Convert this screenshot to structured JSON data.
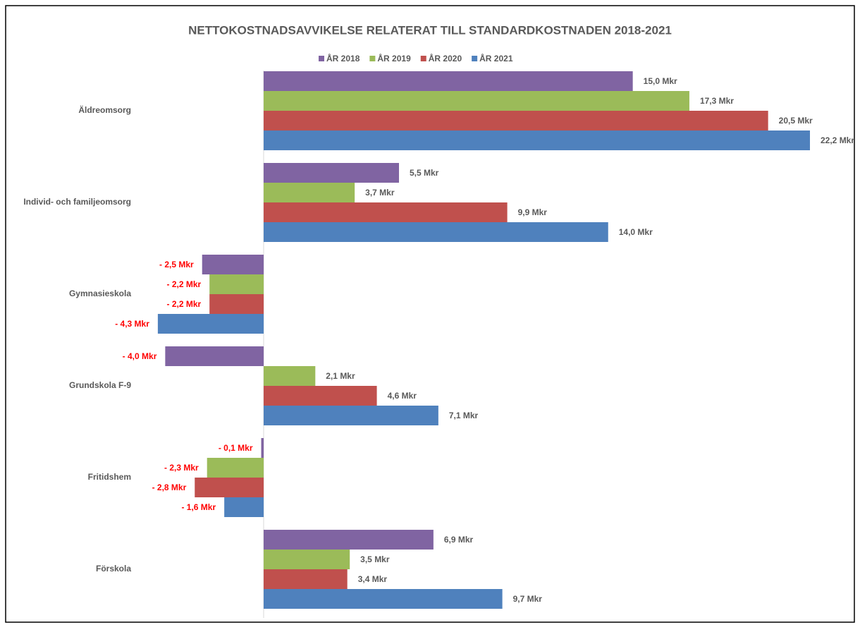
{
  "chart_data": {
    "type": "hbar",
    "title": "NETTOKOSTNADSAVVIKELSE RELATERAT TILL STANDARDKOSTNADEN 2018-2021",
    "categories": [
      "Äldreomsorg",
      "Individ- och familjeomsorg",
      "Gymnasieskola",
      "Grundskola F-9",
      "Fritidshem",
      "Förskola"
    ],
    "series": [
      {
        "name": "ÅR 2018",
        "color": "#8064a2",
        "values": [
          15.0,
          5.5,
          -2.5,
          -4.0,
          -0.1,
          6.9
        ],
        "value_labels": [
          "15,0 Mkr",
          "5,5 Mkr",
          "- 2,5 Mkr",
          "- 4,0 Mkr",
          "- 0,1 Mkr",
          "6,9 Mkr"
        ]
      },
      {
        "name": "ÅR 2019",
        "color": "#9bbb59",
        "values": [
          17.3,
          3.7,
          -2.2,
          2.1,
          -2.3,
          3.5
        ],
        "value_labels": [
          "17,3 Mkr",
          "3,7 Mkr",
          "- 2,2 Mkr",
          "2,1 Mkr",
          "- 2,3 Mkr",
          "3,5 Mkr"
        ]
      },
      {
        "name": "ÅR 2020",
        "color": "#c0504d",
        "values": [
          20.5,
          9.9,
          -2.2,
          4.6,
          -2.8,
          3.4
        ],
        "value_labels": [
          "20,5 Mkr",
          "9,9 Mkr",
          "- 2,2 Mkr",
          "4,6 Mkr",
          "- 2,8 Mkr",
          "3,4 Mkr"
        ]
      },
      {
        "name": "ÅR 2021",
        "color": "#4f81bd",
        "values": [
          22.2,
          14.0,
          -4.3,
          7.1,
          -1.6,
          9.7
        ],
        "value_labels": [
          "22,2 Mkr",
          "14,0 Mkr",
          "- 4,3 Mkr",
          "7,1 Mkr",
          "- 1,6 Mkr",
          "9,7 Mkr"
        ]
      }
    ],
    "negative_label_color": "#ff0000",
    "legend": "top"
  }
}
